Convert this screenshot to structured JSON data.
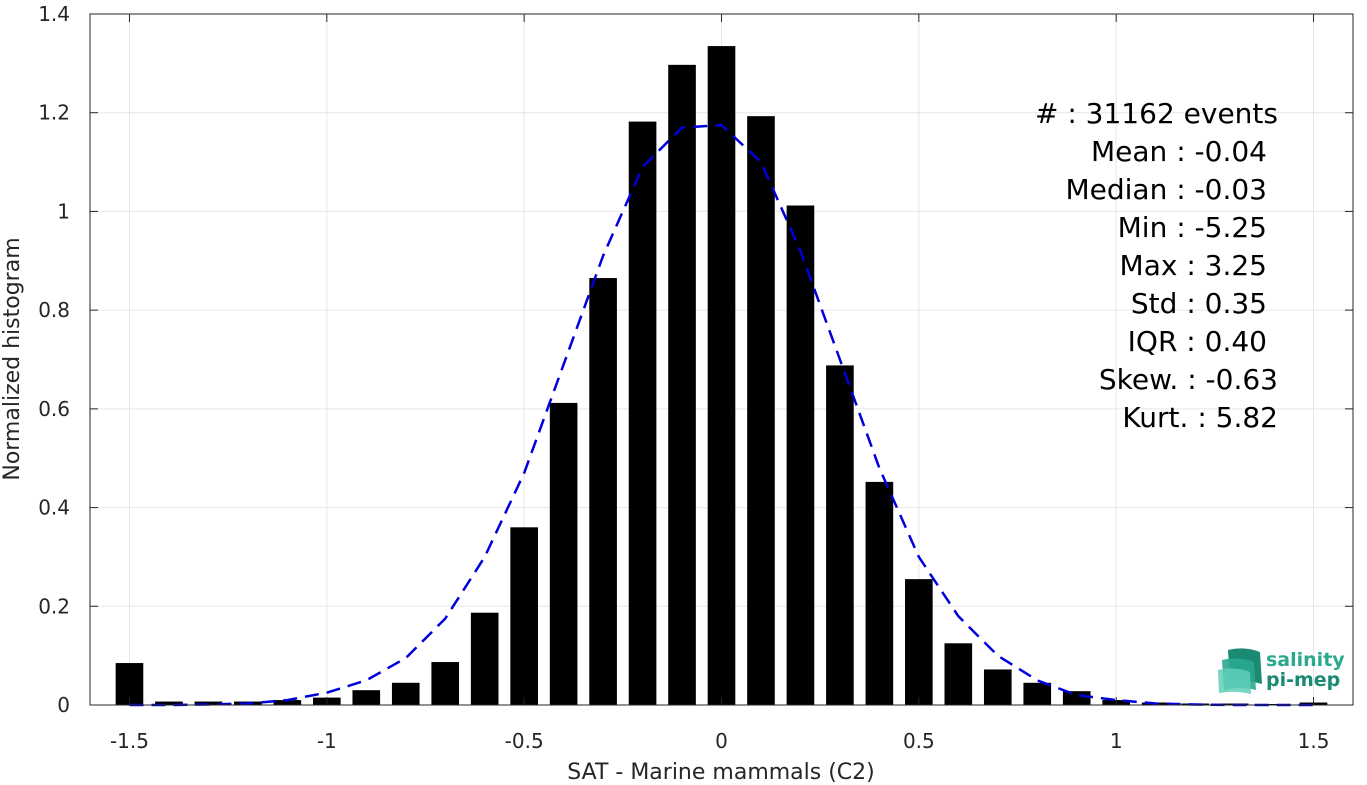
{
  "chart_data": {
    "type": "bar",
    "xlabel": "SAT - Marine mammals (C2)",
    "ylabel": "Normalized histogram",
    "xlim": [
      -1.6,
      1.6
    ],
    "ylim": [
      0,
      1.4
    ],
    "xticks": [
      -1.5,
      -1,
      -0.5,
      0,
      0.5,
      1,
      1.5
    ],
    "xtick_labels": [
      "-1.5",
      "-1",
      "-0.5",
      "0",
      "0.5",
      "1",
      "1.5"
    ],
    "yticks": [
      0,
      0.2,
      0.4,
      0.6,
      0.8,
      1,
      1.2,
      1.4
    ],
    "ytick_labels": [
      "0",
      "0.2",
      "0.4",
      "0.6",
      "0.8",
      "1",
      "1.2",
      "1.4"
    ],
    "grid": true,
    "bar_width": 0.07,
    "bar_color": "#000000",
    "bars": {
      "x": [
        -1.5,
        -1.4,
        -1.3,
        -1.2,
        -1.1,
        -1.0,
        -0.9,
        -0.8,
        -0.7,
        -0.6,
        -0.5,
        -0.4,
        -0.3,
        -0.2,
        -0.1,
        0.0,
        0.1,
        0.2,
        0.3,
        0.4,
        0.5,
        0.6,
        0.7,
        0.8,
        0.9,
        1.0,
        1.1,
        1.2,
        1.3,
        1.4,
        1.5
      ],
      "values": [
        0.085,
        0.007,
        0.007,
        0.007,
        0.01,
        0.015,
        0.03,
        0.045,
        0.087,
        0.187,
        0.36,
        0.612,
        0.865,
        1.182,
        1.297,
        1.335,
        1.193,
        1.012,
        0.688,
        0.452,
        0.255,
        0.125,
        0.072,
        0.045,
        0.028,
        0.01,
        0.005,
        0.003,
        0.003,
        0.002,
        0.005
      ]
    },
    "fit_curve": {
      "style": "dashed",
      "color": "#0000dd",
      "x": [
        -1.5,
        -1.4,
        -1.3,
        -1.2,
        -1.1,
        -1.0,
        -0.9,
        -0.8,
        -0.7,
        -0.6,
        -0.5,
        -0.4,
        -0.3,
        -0.2,
        -0.1,
        0.0,
        0.1,
        0.2,
        0.3,
        0.4,
        0.5,
        0.6,
        0.7,
        0.8,
        0.9,
        1.0,
        1.1,
        1.2,
        1.3,
        1.4,
        1.5
      ],
      "values": [
        0.0,
        0.0,
        0.001,
        0.003,
        0.01,
        0.025,
        0.05,
        0.095,
        0.175,
        0.3,
        0.47,
        0.69,
        0.91,
        1.09,
        1.17,
        1.175,
        1.1,
        0.92,
        0.7,
        0.48,
        0.3,
        0.18,
        0.1,
        0.05,
        0.02,
        0.01,
        0.003,
        0.001,
        0.0,
        0.0,
        0.0
      ]
    },
    "annotations": [
      "#  : 31162 events",
      "Mean : -0.04",
      "Median : -0.03",
      "Min : -5.25",
      "Max : 3.25",
      "Std : 0.35",
      "IQR : 0.40",
      "Skew. : -0.63",
      "Kurt. : 5.82"
    ]
  },
  "logo": {
    "line1": "salinity",
    "line2": "pi-mep",
    "color_dark": "#1a8a72",
    "color_light": "#3cc0a8"
  }
}
